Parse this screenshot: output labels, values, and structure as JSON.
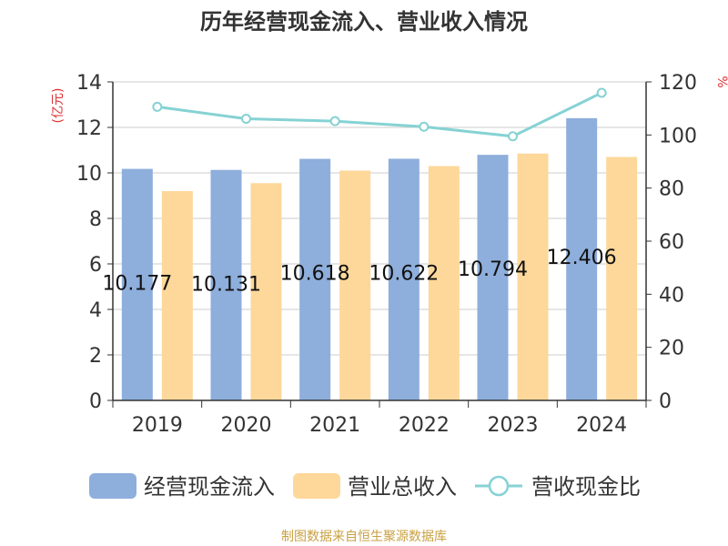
{
  "chart_data": {
    "type": "bar",
    "title": "历年经营现金流入、营业收入情况",
    "categories": [
      "2019",
      "2020",
      "2021",
      "2022",
      "2023",
      "2024"
    ],
    "ylabel_left": "(亿元)",
    "ylabel_right": "%",
    "ylim_left": [
      0,
      14
    ],
    "ylim_right": [
      0,
      120
    ],
    "yticks_left": [
      "0",
      "2",
      "4",
      "6",
      "8",
      "10",
      "12",
      "14"
    ],
    "yticks_right": [
      "0",
      "20",
      "40",
      "60",
      "80",
      "100",
      "120"
    ],
    "grid": true,
    "legend_position": "bottom",
    "series": [
      {
        "name": "经营现金流入",
        "type": "bar",
        "axis": "left",
        "color": "#8eaedc",
        "values": [
          10.177,
          10.131,
          10.618,
          10.622,
          10.794,
          12.406
        ],
        "labels": [
          "10.177",
          "10.131",
          "10.618",
          "10.622",
          "10.794",
          "12.406"
        ]
      },
      {
        "name": "营业总收入",
        "type": "bar",
        "axis": "left",
        "color": "#fdd89a",
        "values": [
          9.2,
          9.55,
          10.1,
          10.3,
          10.85,
          10.7
        ]
      },
      {
        "name": "营收现金比",
        "type": "line",
        "axis": "right",
        "color": "#86d2d4",
        "values": [
          110.6,
          106.1,
          105.2,
          103.1,
          99.5,
          115.9
        ]
      }
    ],
    "source": "制图数据来自恒生聚源数据库"
  }
}
